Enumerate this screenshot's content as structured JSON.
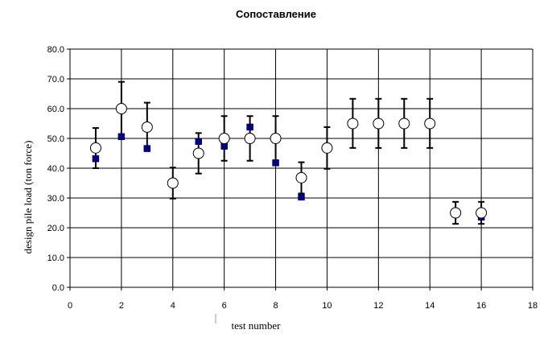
{
  "chart_data": {
    "type": "scatter",
    "title": "Сопоставление",
    "xlabel": "test number",
    "ylabel": "design pile load (ton force)",
    "xlim": [
      0,
      18
    ],
    "ylim": [
      0,
      80
    ],
    "x_ticks": [
      "0",
      "2",
      "4",
      "6",
      "8",
      "10",
      "12",
      "14",
      "16",
      "18"
    ],
    "y_ticks": [
      "0.0",
      "10.0",
      "20.0",
      "30.0",
      "40.0",
      "50.0",
      "60.0",
      "70.0",
      "80.0"
    ],
    "grid": true,
    "legend": "none",
    "series": [
      {
        "marker": "open-circle",
        "error_bars": true,
        "points": [
          {
            "x": 1,
            "y": 46.8,
            "low": 40.0,
            "high": 53.5
          },
          {
            "x": 2,
            "y": 60.0,
            "low": 51.0,
            "high": 69.0
          },
          {
            "x": 3,
            "y": 53.8,
            "low": 46.5,
            "high": 62.0
          },
          {
            "x": 4,
            "y": 35.0,
            "low": 29.8,
            "high": 40.2
          },
          {
            "x": 5,
            "y": 45.0,
            "low": 38.2,
            "high": 51.8
          },
          {
            "x": 6,
            "y": 50.0,
            "low": 42.5,
            "high": 57.5
          },
          {
            "x": 7,
            "y": 50.0,
            "low": 42.5,
            "high": 57.5
          },
          {
            "x": 8,
            "y": 50.0,
            "low": 42.5,
            "high": 57.5
          },
          {
            "x": 9,
            "y": 36.8,
            "low": 31.5,
            "high": 42.0
          },
          {
            "x": 10,
            "y": 46.8,
            "low": 39.8,
            "high": 53.8
          },
          {
            "x": 11,
            "y": 55.0,
            "low": 46.8,
            "high": 63.3
          },
          {
            "x": 12,
            "y": 55.0,
            "low": 46.8,
            "high": 63.3
          },
          {
            "x": 13,
            "y": 55.0,
            "low": 46.8,
            "high": 63.3
          },
          {
            "x": 14,
            "y": 55.0,
            "low": 46.8,
            "high": 63.3
          },
          {
            "x": 15,
            "y": 25.0,
            "low": 21.3,
            "high": 28.7
          },
          {
            "x": 16,
            "y": 25.0,
            "low": 21.3,
            "high": 28.7
          }
        ]
      },
      {
        "marker": "filled-square",
        "color": "#00007f",
        "points": [
          {
            "x": 1,
            "y": 43.2
          },
          {
            "x": 2,
            "y": 50.6
          },
          {
            "x": 3,
            "y": 46.6
          },
          {
            "x": 5,
            "y": 49.0
          },
          {
            "x": 6,
            "y": 47.4
          },
          {
            "x": 7,
            "y": 53.8
          },
          {
            "x": 8,
            "y": 41.8
          },
          {
            "x": 9,
            "y": 30.3
          },
          {
            "x": 16,
            "y": 23.6
          }
        ]
      }
    ]
  }
}
